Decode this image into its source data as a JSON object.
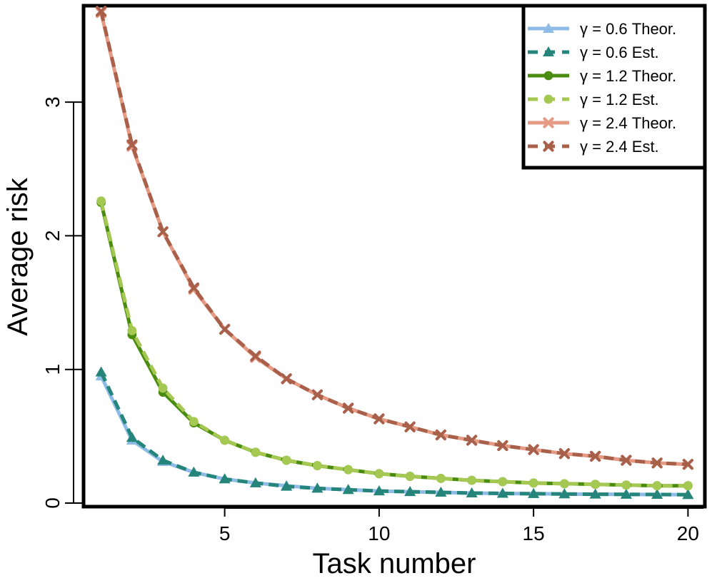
{
  "chart_data": {
    "type": "line",
    "title": "",
    "xlabel": "Task number",
    "ylabel": "Average risk",
    "xlim": [
      0.5,
      20.5
    ],
    "ylim": [
      0,
      3.7
    ],
    "x": [
      1,
      2,
      3,
      4,
      5,
      6,
      7,
      8,
      9,
      10,
      11,
      12,
      13,
      14,
      15,
      16,
      17,
      18,
      19,
      20
    ],
    "xticks": [
      5,
      10,
      15,
      20
    ],
    "yticks": [
      0,
      1,
      2,
      3
    ],
    "legend_position": "top-right",
    "grid": false,
    "series": [
      {
        "name": "γ = 0.6 Theor.",
        "color": "#8fbce6",
        "marker": "triangle",
        "line": "solid",
        "values": [
          0.95,
          0.47,
          0.31,
          0.23,
          0.18,
          0.15,
          0.13,
          0.11,
          0.1,
          0.09,
          0.085,
          0.08,
          0.075,
          0.072,
          0.07,
          0.068,
          0.066,
          0.065,
          0.064,
          0.063
        ]
      },
      {
        "name": "γ = 0.6 Est.",
        "color": "#25857a",
        "marker": "triangle",
        "line": "dashed",
        "values": [
          0.98,
          0.49,
          0.32,
          0.23,
          0.18,
          0.15,
          0.125,
          0.11,
          0.1,
          0.09,
          0.085,
          0.08,
          0.075,
          0.072,
          0.07,
          0.068,
          0.066,
          0.065,
          0.064,
          0.063
        ]
      },
      {
        "name": "γ = 1.2 Theor.",
        "color": "#4a8c10",
        "marker": "circle",
        "line": "solid",
        "values": [
          2.25,
          1.26,
          0.83,
          0.6,
          0.47,
          0.38,
          0.32,
          0.28,
          0.25,
          0.22,
          0.2,
          0.185,
          0.17,
          0.16,
          0.15,
          0.145,
          0.14,
          0.135,
          0.13,
          0.13
        ]
      },
      {
        "name": "γ = 1.2 Est.",
        "color": "#a5c853",
        "marker": "circle",
        "line": "dashed",
        "values": [
          2.26,
          1.29,
          0.86,
          0.61,
          0.47,
          0.38,
          0.32,
          0.28,
          0.25,
          0.22,
          0.2,
          0.185,
          0.17,
          0.16,
          0.15,
          0.145,
          0.14,
          0.135,
          0.13,
          0.13
        ]
      },
      {
        "name": "γ = 2.4 Theor.",
        "color": "#e59a84",
        "marker": "x",
        "line": "solid",
        "values": [
          3.67,
          2.67,
          2.03,
          1.6,
          1.3,
          1.09,
          0.93,
          0.81,
          0.71,
          0.63,
          0.57,
          0.51,
          0.47,
          0.43,
          0.4,
          0.37,
          0.35,
          0.32,
          0.3,
          0.29
        ]
      },
      {
        "name": "γ = 2.4 Est.",
        "color": "#a8604a",
        "marker": "x",
        "line": "dashed",
        "values": [
          3.68,
          2.68,
          2.03,
          1.61,
          1.3,
          1.1,
          0.93,
          0.81,
          0.71,
          0.63,
          0.57,
          0.51,
          0.47,
          0.43,
          0.4,
          0.37,
          0.35,
          0.32,
          0.3,
          0.29
        ]
      }
    ]
  }
}
